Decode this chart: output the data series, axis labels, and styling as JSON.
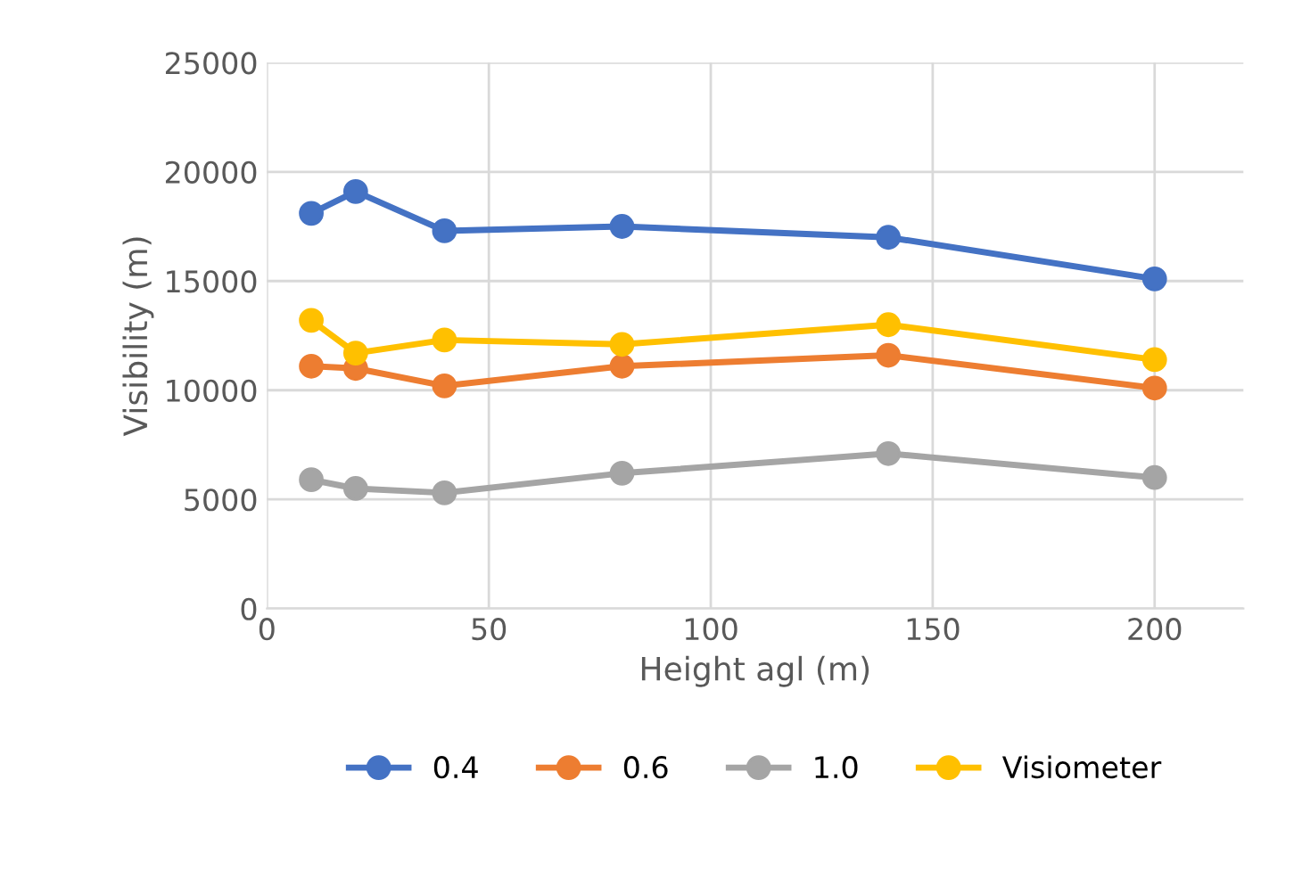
{
  "chart_data": {
    "type": "line",
    "xlabel": "Height agl (m)",
    "ylabel": "Visibility (m)",
    "x": [
      10,
      20,
      40,
      80,
      140,
      200
    ],
    "series": [
      {
        "name": "0.4",
        "color": "#4472c4",
        "values": [
          18100,
          19100,
          17300,
          17500,
          17000,
          15100
        ]
      },
      {
        "name": "0.6",
        "color": "#ed7d31",
        "values": [
          11100,
          11000,
          10200,
          11100,
          11600,
          10100
        ]
      },
      {
        "name": "1.0",
        "color": "#a5a5a5",
        "values": [
          5900,
          5500,
          5300,
          6200,
          7100,
          6000
        ]
      },
      {
        "name": "Visiometer",
        "color": "#ffc000",
        "values": [
          13200,
          11700,
          12300,
          12100,
          13000,
          11400
        ]
      }
    ],
    "xlim": [
      0,
      220
    ],
    "xticks": [
      0,
      50,
      100,
      150,
      200
    ],
    "ylim": [
      0,
      25000
    ],
    "yticks": [
      0,
      5000,
      10000,
      15000,
      20000,
      25000
    ],
    "grid": true,
    "legend": "bottom",
    "marker": "circle",
    "line_style": "solid"
  }
}
